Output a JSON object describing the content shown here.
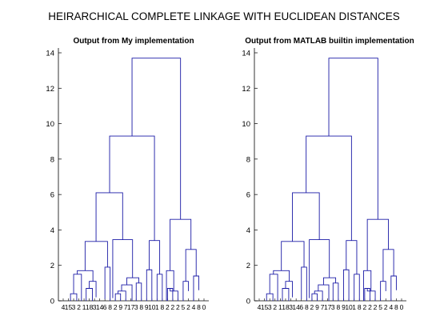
{
  "figure_title": "HEIRARCHICAL COMPLETE LINKAGE WITH EUCLIDEAN DISTANCES",
  "line_color": "#1a1aa6",
  "chart_data": [
    {
      "type": "dendrogram",
      "title": "Output from My implementation",
      "xlabel": "",
      "ylabel": "",
      "ylim": [
        0,
        14.5
      ],
      "yticks": [
        0,
        2,
        4,
        6,
        8,
        10,
        12,
        14
      ],
      "xtick_labels": [
        "4",
        "15",
        "3",
        "2",
        "1",
        "18",
        "3",
        "14",
        "6",
        "8",
        "2",
        "9",
        "7",
        "17",
        "3",
        "8",
        "9",
        "10",
        "1",
        "8",
        "2",
        "2",
        "2",
        "5",
        "2",
        "4",
        "8",
        "0"
      ],
      "leaf_count": 28,
      "merges": [
        {
          "left": 1.4,
          "right": 2.6,
          "height": 0.4,
          "hl": 0,
          "hr": 0
        },
        {
          "left": 2.0,
          "right": 3.5,
          "height": 1.5,
          "hl": 0.4,
          "hr": 0
        },
        {
          "left": 4.4,
          "right": 5.6,
          "height": 0.7,
          "hl": 0,
          "hr": 0
        },
        {
          "left": 5.0,
          "right": 6.3,
          "height": 1.1,
          "hl": 0.7,
          "hr": 0.2
        },
        {
          "left": 2.7,
          "right": 5.7,
          "height": 1.7,
          "hl": 1.5,
          "hr": 1.1
        },
        {
          "left": 8.0,
          "right": 9.0,
          "height": 1.9,
          "hl": 0.1,
          "hr": 0
        },
        {
          "left": 4.2,
          "right": 8.5,
          "height": 3.35,
          "hl": 1.7,
          "hr": 1.9
        },
        {
          "left": 10.0,
          "right": 11.0,
          "height": 0.4,
          "hl": 0,
          "hr": 0
        },
        {
          "left": 10.5,
          "right": 12.0,
          "height": 0.55,
          "hl": 0.4,
          "hr": 0
        },
        {
          "left": 11.2,
          "right": 13.2,
          "height": 0.9,
          "hl": 0.55,
          "hr": 0
        },
        {
          "left": 14.0,
          "right": 15.0,
          "height": 1.0,
          "hl": 0,
          "hr": 0
        },
        {
          "left": 12.2,
          "right": 14.5,
          "height": 1.3,
          "hl": 0.9,
          "hr": 1.0
        },
        {
          "left": 9.5,
          "right": 13.3,
          "height": 3.45,
          "hl": 0.15,
          "hr": 1.3
        },
        {
          "left": 6.3,
          "right": 11.4,
          "height": 6.1,
          "hl": 3.35,
          "hr": 3.45
        },
        {
          "left": 16.0,
          "right": 17.0,
          "height": 1.75,
          "hl": 0,
          "hr": 0
        },
        {
          "left": 18.0,
          "right": 19.0,
          "height": 1.5,
          "hl": 0,
          "hr": 0
        },
        {
          "left": 16.5,
          "right": 18.5,
          "height": 3.4,
          "hl": 1.75,
          "hr": 1.5
        },
        {
          "left": 8.9,
          "right": 17.5,
          "height": 9.3,
          "hl": 6.1,
          "hr": 3.4
        },
        {
          "left": 20.0,
          "right": 21.0,
          "height": 0.7,
          "hl": 0,
          "hr": 0
        },
        {
          "left": 20.5,
          "right": 22.0,
          "height": 0.55,
          "hl": 0.7,
          "hr": 0
        },
        {
          "left": 19.8,
          "right": 21.2,
          "height": 1.7,
          "hl": 0,
          "hr": 0.55
        },
        {
          "left": 23.0,
          "right": 24.0,
          "height": 1.1,
          "hl": 0,
          "hr": 0.55
        },
        {
          "left": 25.0,
          "right": 26.0,
          "height": 1.4,
          "hl": 0,
          "hr": 0.6
        },
        {
          "left": 23.5,
          "right": 25.5,
          "height": 2.9,
          "hl": 1.1,
          "hr": 1.4
        },
        {
          "left": 20.5,
          "right": 24.5,
          "height": 4.6,
          "hl": 1.7,
          "hr": 2.9
        },
        {
          "left": 13.2,
          "right": 22.5,
          "height": 13.7,
          "hl": 9.3,
          "hr": 4.6
        }
      ]
    },
    {
      "type": "dendrogram",
      "title": "Output from MATLAB builtin implementation",
      "xlabel": "",
      "ylabel": "",
      "ylim": [
        0,
        14.5
      ],
      "yticks": [
        0,
        2,
        4,
        6,
        8,
        10,
        12,
        14
      ],
      "xtick_labels": [
        "4",
        "15",
        "3",
        "2",
        "1",
        "18",
        "3",
        "14",
        "6",
        "8",
        "2",
        "9",
        "7",
        "17",
        "3",
        "8",
        "9",
        "10",
        "1",
        "8",
        "2",
        "2",
        "2",
        "5",
        "2",
        "4",
        "8",
        "0"
      ],
      "leaf_count": 28,
      "merges": [
        {
          "left": 1.4,
          "right": 2.6,
          "height": 0.4,
          "hl": 0,
          "hr": 0
        },
        {
          "left": 2.0,
          "right": 3.5,
          "height": 1.5,
          "hl": 0.4,
          "hr": 0
        },
        {
          "left": 4.4,
          "right": 5.6,
          "height": 0.7,
          "hl": 0,
          "hr": 0
        },
        {
          "left": 5.0,
          "right": 6.3,
          "height": 1.1,
          "hl": 0.7,
          "hr": 0.2
        },
        {
          "left": 2.7,
          "right": 5.7,
          "height": 1.7,
          "hl": 1.5,
          "hr": 1.1
        },
        {
          "left": 8.0,
          "right": 9.0,
          "height": 1.9,
          "hl": 0.1,
          "hr": 0
        },
        {
          "left": 4.2,
          "right": 8.5,
          "height": 3.35,
          "hl": 1.7,
          "hr": 1.9
        },
        {
          "left": 10.0,
          "right": 11.0,
          "height": 0.4,
          "hl": 0,
          "hr": 0
        },
        {
          "left": 10.5,
          "right": 12.0,
          "height": 0.55,
          "hl": 0.4,
          "hr": 0
        },
        {
          "left": 11.2,
          "right": 13.2,
          "height": 0.9,
          "hl": 0.55,
          "hr": 0
        },
        {
          "left": 14.0,
          "right": 15.0,
          "height": 1.0,
          "hl": 0,
          "hr": 0
        },
        {
          "left": 12.2,
          "right": 14.5,
          "height": 1.3,
          "hl": 0.9,
          "hr": 1.0
        },
        {
          "left": 9.5,
          "right": 13.3,
          "height": 3.45,
          "hl": 0.15,
          "hr": 1.3
        },
        {
          "left": 6.3,
          "right": 11.4,
          "height": 6.1,
          "hl": 3.35,
          "hr": 3.45
        },
        {
          "left": 16.0,
          "right": 17.0,
          "height": 1.75,
          "hl": 0,
          "hr": 0
        },
        {
          "left": 18.0,
          "right": 19.0,
          "height": 1.5,
          "hl": 0,
          "hr": 0
        },
        {
          "left": 16.5,
          "right": 18.5,
          "height": 3.4,
          "hl": 1.75,
          "hr": 1.5
        },
        {
          "left": 8.9,
          "right": 17.5,
          "height": 9.3,
          "hl": 6.1,
          "hr": 3.4
        },
        {
          "left": 20.0,
          "right": 21.0,
          "height": 0.7,
          "hl": 0,
          "hr": 0
        },
        {
          "left": 20.5,
          "right": 22.0,
          "height": 0.55,
          "hl": 0.7,
          "hr": 0
        },
        {
          "left": 19.8,
          "right": 21.2,
          "height": 1.7,
          "hl": 0,
          "hr": 0.55
        },
        {
          "left": 23.0,
          "right": 24.0,
          "height": 1.1,
          "hl": 0,
          "hr": 0.55
        },
        {
          "left": 25.0,
          "right": 26.0,
          "height": 1.4,
          "hl": 0,
          "hr": 0.6
        },
        {
          "left": 23.5,
          "right": 25.5,
          "height": 2.9,
          "hl": 1.1,
          "hr": 1.4
        },
        {
          "left": 20.5,
          "right": 24.5,
          "height": 4.6,
          "hl": 1.7,
          "hr": 2.9
        },
        {
          "left": 13.2,
          "right": 22.5,
          "height": 13.7,
          "hl": 9.3,
          "hr": 4.6
        }
      ]
    }
  ]
}
